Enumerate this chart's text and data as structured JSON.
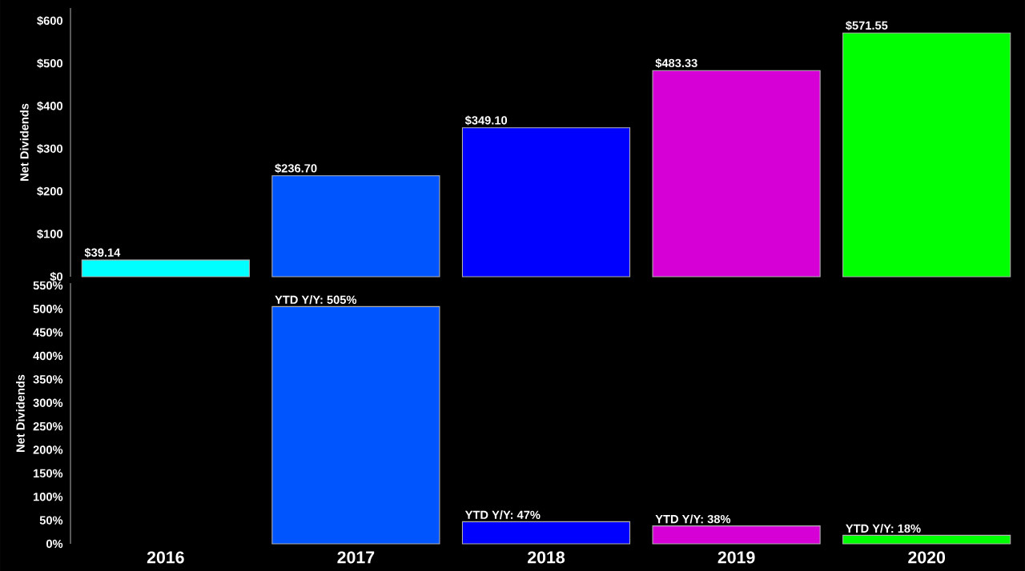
{
  "chart_data": [
    {
      "type": "bar",
      "ylabel": "Net Dividends",
      "categories": [
        "2016",
        "2017",
        "2018",
        "2019",
        "2020"
      ],
      "values": [
        39.14,
        236.7,
        349.1,
        483.33,
        571.55
      ],
      "colors": [
        "#00ffff",
        "#0055ff",
        "#0000ff",
        "#d600d6",
        "#00ff00"
      ],
      "value_labels": [
        "$39.14",
        "$236.70",
        "$349.10",
        "$483.33",
        "$571.55"
      ],
      "ylim": [
        0,
        630
      ],
      "yticks": [
        {
          "value": 0,
          "label": "$0"
        },
        {
          "value": 100,
          "label": "$100"
        },
        {
          "value": 200,
          "label": "$200"
        },
        {
          "value": 300,
          "label": "$300"
        },
        {
          "value": 400,
          "label": "$400"
        },
        {
          "value": 500,
          "label": "$500"
        },
        {
          "value": 600,
          "label": "$600"
        }
      ],
      "tick_labels": "y"
    },
    {
      "type": "bar",
      "ylabel": "Net Dividends",
      "categories": [
        "2016",
        "2017",
        "2018",
        "2019",
        "2020"
      ],
      "values": [
        null,
        505,
        47,
        38,
        18
      ],
      "colors": [
        "#00ffff",
        "#0055ff",
        "#0000ff",
        "#d600d6",
        "#00ff00"
      ],
      "value_labels": [
        null,
        "YTD Y/Y: 505%",
        "YTD Y/Y: 47%",
        "YTD Y/Y: 38%",
        "YTD Y/Y: 18%"
      ],
      "ylim": [
        0,
        555
      ],
      "yticks": [
        {
          "value": 0,
          "label": "0%"
        },
        {
          "value": 50,
          "label": "50%"
        },
        {
          "value": 100,
          "label": "100%"
        },
        {
          "value": 150,
          "label": "150%"
        },
        {
          "value": 200,
          "label": "200%"
        },
        {
          "value": 250,
          "label": "250%"
        },
        {
          "value": 300,
          "label": "300%"
        },
        {
          "value": 350,
          "label": "350%"
        },
        {
          "value": 400,
          "label": "400%"
        },
        {
          "value": 450,
          "label": "450%"
        },
        {
          "value": 500,
          "label": "500%"
        },
        {
          "value": 550,
          "label": "550%"
        }
      ]
    }
  ]
}
